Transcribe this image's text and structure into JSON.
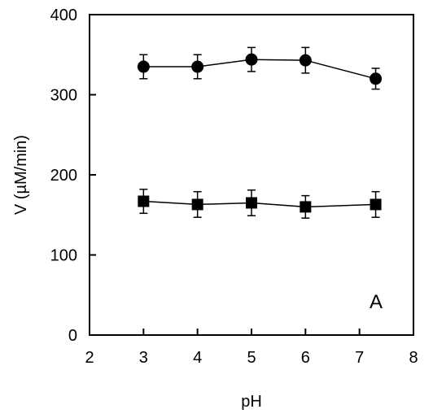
{
  "chart_data": {
    "type": "line",
    "title": "",
    "xlabel": "pH",
    "ylabel": "V (µM/min)",
    "xlim": [
      2,
      8
    ],
    "ylim": [
      0,
      400
    ],
    "xticks": [
      "2",
      "3",
      "4",
      "5",
      "6",
      "7",
      "8"
    ],
    "yticks": [
      "0",
      "100",
      "200",
      "300",
      "400"
    ],
    "grid": false,
    "panel_label": "A",
    "series": [
      {
        "marker": "circle",
        "color": "#000000",
        "x": [
          3,
          4,
          5,
          6,
          7.3
        ],
        "y": [
          335,
          335,
          344,
          343,
          320
        ],
        "err": [
          15,
          15,
          15,
          16,
          13
        ]
      },
      {
        "marker": "square",
        "color": "#000000",
        "x": [
          3,
          4,
          5,
          6,
          7.3
        ],
        "y": [
          167,
          163,
          165,
          160,
          163
        ],
        "err": [
          15,
          16,
          16,
          14,
          16
        ]
      }
    ]
  }
}
